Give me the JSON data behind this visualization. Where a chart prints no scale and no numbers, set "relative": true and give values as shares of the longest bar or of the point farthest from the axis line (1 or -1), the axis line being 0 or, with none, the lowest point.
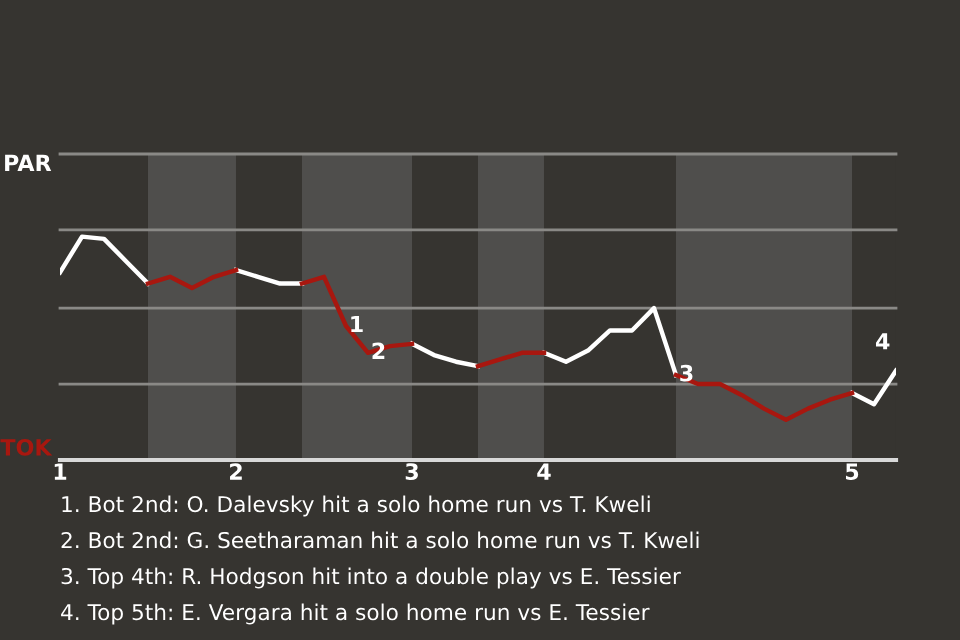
{
  "chart_data": {
    "type": "line",
    "relative": true,
    "categories": [
      "1",
      null,
      null,
      null,
      null,
      null,
      null,
      null,
      "2",
      null,
      null,
      null,
      null,
      null,
      null,
      null,
      "3",
      null,
      null,
      null,
      null,
      null,
      "4",
      null,
      null,
      null,
      null,
      null,
      null,
      null,
      null,
      null,
      null,
      null,
      null,
      null,
      "5",
      null,
      null
    ],
    "series": [
      {
        "color": "#ffffff",
        "values": [
          0.84,
          1.0,
          0.99,
          0.89,
          0.79,
          null,
          null,
          null,
          0.85,
          0.82,
          0.79,
          0.79,
          null,
          null,
          null,
          null,
          0.52,
          0.47,
          0.44,
          0.42,
          null,
          null,
          0.48,
          0.44,
          0.49,
          0.58,
          0.58,
          0.68,
          0.38,
          null,
          null,
          null,
          null,
          null,
          null,
          null,
          0.3,
          0.25,
          0.4
        ]
      },
      {
        "color": "#a8170f",
        "values": [
          null,
          null,
          null,
          null,
          0.79,
          0.82,
          0.77,
          0.82,
          0.85,
          null,
          null,
          0.79,
          0.82,
          0.6,
          0.48,
          0.51,
          0.52,
          null,
          null,
          0.42,
          0.45,
          0.48,
          0.48,
          null,
          null,
          null,
          null,
          null,
          0.38,
          0.34,
          0.34,
          0.29,
          0.23,
          0.18,
          0.23,
          0.27,
          0.3,
          null,
          null
        ]
      }
    ],
    "ref_lines": [
      {
        "axis": "y",
        "value": 0.34,
        "color": "#8a8986"
      },
      {
        "axis": "y",
        "value": 0.68,
        "color": "#8a8986"
      },
      {
        "axis": "y",
        "value": 1.03,
        "color": "#8a8986"
      },
      {
        "axis": "y",
        "value": 1.37,
        "color": "#8a8986"
      }
    ],
    "annotations": [
      "PAR",
      "TOK",
      {
        "text": "1",
        "y": 0.6
      },
      {
        "text": "2",
        "y": 0.48
      },
      {
        "text": "3",
        "y": 0.38
      },
      {
        "text": "4",
        "y": 0.4
      },
      "1. Bot 2nd: O. Dalevsky hit a solo home run vs T. Kweli",
      "2. Bot 2nd: G. Seetharaman hit a solo home run vs T. Kweli",
      "3. Top 4th: R. Hodgson hit into a double play vs E. Tessier",
      "4. Top 5th: E. Vergara hit a solo home run vs E. Tessier"
    ]
  }
}
